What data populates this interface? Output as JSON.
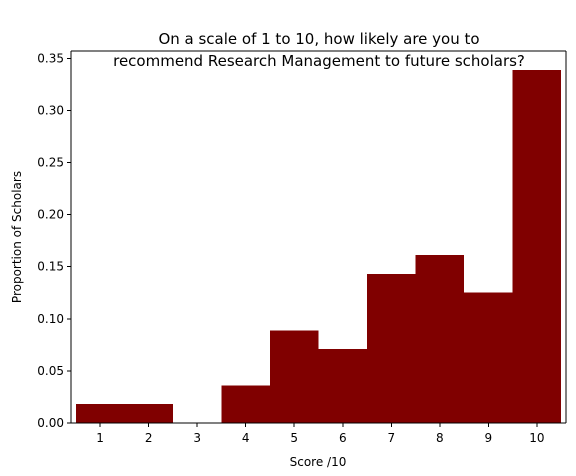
{
  "chart_data": {
    "type": "bar",
    "title_lines": [
      "On a scale of 1 to 10, how likely are you to",
      "recommend Research Management to future scholars?"
    ],
    "xlabel": "Score /10",
    "ylabel": "Proportion of Scholars",
    "categories": [
      "1",
      "2",
      "3",
      "4",
      "5",
      "6",
      "7",
      "8",
      "9",
      "10"
    ],
    "values": [
      0.018,
      0.018,
      0.0,
      0.036,
      0.089,
      0.071,
      0.143,
      0.161,
      0.125,
      0.339
    ],
    "xlim": [
      0.4,
      10.6
    ],
    "ylim": [
      0.0,
      0.357
    ],
    "yticks": [
      "0.00",
      "0.05",
      "0.10",
      "0.15",
      "0.20",
      "0.25",
      "0.30",
      "0.35"
    ],
    "bar_color": "#800000",
    "grid": false,
    "legend": "none"
  }
}
